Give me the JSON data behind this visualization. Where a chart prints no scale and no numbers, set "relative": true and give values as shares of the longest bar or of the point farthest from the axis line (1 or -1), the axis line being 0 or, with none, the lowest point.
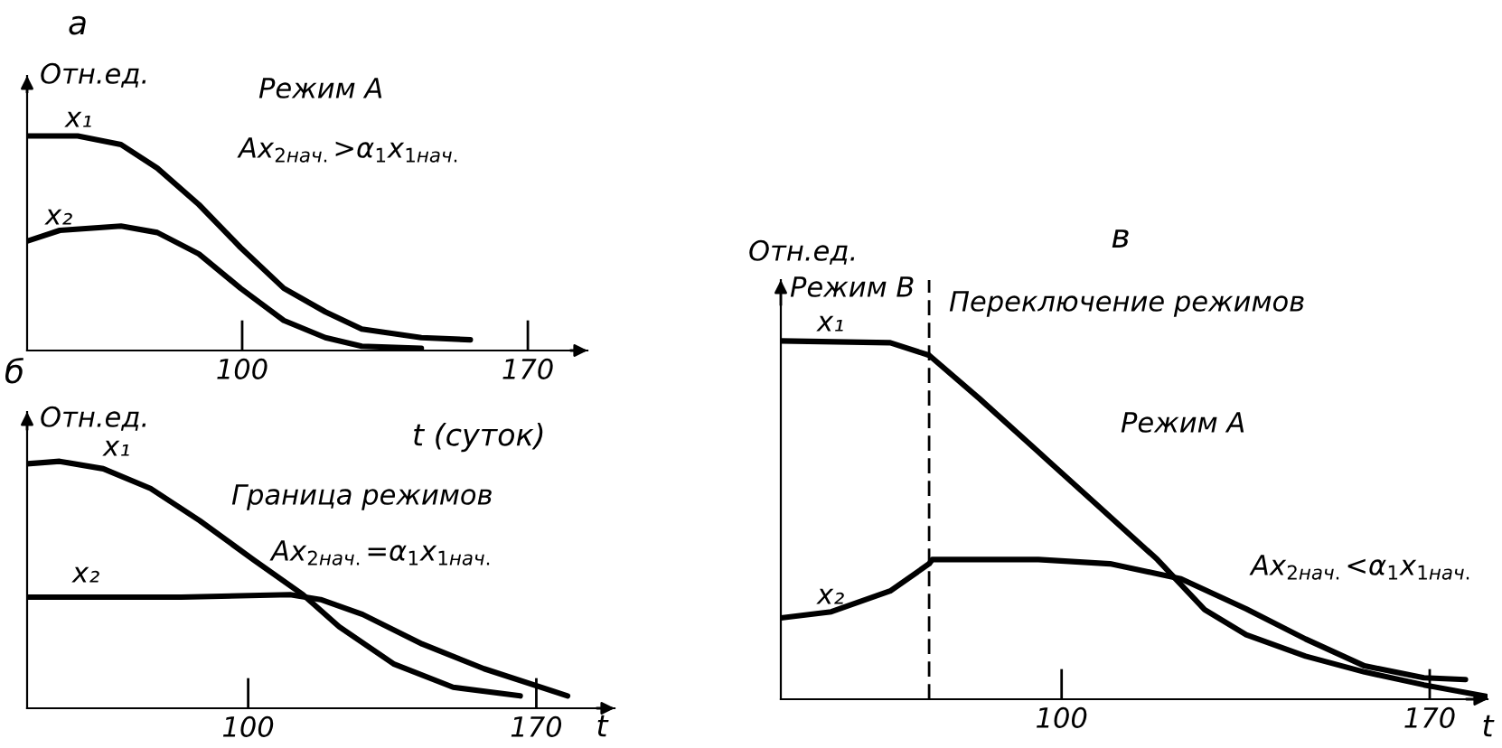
{
  "chart_data": [
    {
      "type": "line",
      "title": "а",
      "ylabel": "Отн.ед.",
      "xlabel": "t (суток)",
      "relative": true,
      "xlim": [
        47.3,
        184.6
      ],
      "xticks": [
        100,
        170
      ],
      "tick_labels": "x",
      "grid": false,
      "legend": false,
      "marker": "none",
      "line_style": "solid",
      "annotations": [
        "Режим А",
        "Ax$_{2нач.}$>α$_{1}$x$_{1нач.}$"
      ],
      "series": [
        {
          "name": "x₁",
          "color": "#000000",
          "x": [
            47.3,
            59.7,
            70.3,
            79.2,
            89.4,
            99.6,
            110.2,
            120.4,
            129.3,
            143.9,
            155.9
          ],
          "values": [
            1,
            1,
            0.96,
            0.85,
            0.68,
            0.48,
            0.29,
            0.18,
            0.1,
            0.06,
            0.05
          ]
        },
        {
          "name": "x₂",
          "color": "#000000",
          "x": [
            47.3,
            55.3,
            70.3,
            79.2,
            89.4,
            99.6,
            110.2,
            120.4,
            129.3,
            143.9
          ],
          "values": [
            0.51,
            0.56,
            0.58,
            0.55,
            0.45,
            0.29,
            0.14,
            0.06,
            0.02,
            0.01
          ]
        }
      ]
    },
    {
      "type": "line",
      "title": "б",
      "ylabel": "Отн.ед.",
      "xlabel": "t",
      "relative": true,
      "xlim": [
        46.3,
        189
      ],
      "xticks": [
        100,
        170
      ],
      "tick_labels": "x",
      "grid": false,
      "legend": false,
      "marker": "none",
      "line_style": "solid",
      "annotations": [
        "Граница режимов",
        "Ax$_{2нач.}$=α$_{1}$x$_{1нач.}$"
      ],
      "series": [
        {
          "name": "x₁",
          "color": "#000000",
          "x": [
            46.3,
            54.2,
            64.8,
            76.3,
            88.2,
            101.4,
            113.3,
            122.1,
            135.3,
            149.8,
            166.1
          ],
          "values": [
            0.99,
            1,
            0.97,
            0.89,
            0.76,
            0.6,
            0.46,
            0.33,
            0.18,
            0.085,
            0.05
          ]
        },
        {
          "name": "x₂",
          "color": "#000000",
          "x": [
            46.3,
            83.7,
            110.2,
            117.6,
            127.8,
            142.3,
            157.3,
            177.6
          ],
          "values": [
            0.45,
            0.45,
            0.46,
            0.44,
            0.38,
            0.26,
            0.16,
            0.05
          ]
        }
      ]
    },
    {
      "type": "line",
      "title": "в",
      "ylabel": "Отн.ед.",
      "xlabel": "t",
      "relative": true,
      "xlim": [
        46.6,
        181
      ],
      "xticks": [
        100,
        170
      ],
      "tick_labels": "x",
      "grid": false,
      "legend": false,
      "marker": "none",
      "line_style": "solid",
      "annotations": [
        "Режим В",
        "Переключение режимов",
        "Режим А",
        "Ax$_{2нач.}$<α$_{1}$x$_{1нач.}$"
      ],
      "ref_lines": [
        {
          "axis": "x",
          "value": 74.8,
          "color": "#000000",
          "line_style": "dashed"
        }
      ],
      "series": [
        {
          "name": "x₁",
          "color": "#000000",
          "x": [
            46.6,
            67.4,
            74.8,
            84.3,
            95.6,
            106.9,
            118.2,
            127.2,
            135.1,
            146.4,
            157.6,
            168.9,
            180.7
          ],
          "values": [
            1,
            0.995,
            0.96,
            0.84,
            0.69,
            0.54,
            0.39,
            0.25,
            0.18,
            0.12,
            0.076,
            0.04,
            0.008
          ]
        },
        {
          "name": "x₂",
          "color": "#000000",
          "x": [
            46.6,
            56.2,
            67.4,
            74.8,
            75.4,
            95.6,
            109.2,
            122.7,
            135.1,
            146.4,
            157.6,
            168.9,
            176.8
          ],
          "values": [
            0.227,
            0.244,
            0.302,
            0.378,
            0.39,
            0.39,
            0.378,
            0.336,
            0.252,
            0.168,
            0.093,
            0.06,
            0.055
          ]
        }
      ]
    }
  ]
}
